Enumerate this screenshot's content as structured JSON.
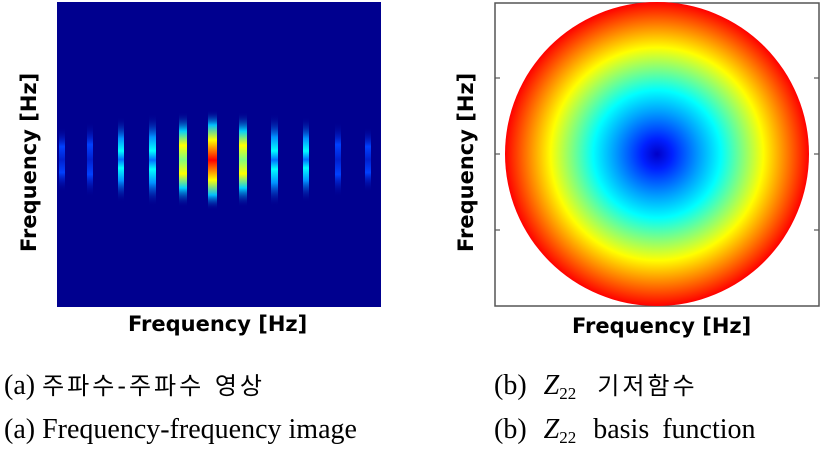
{
  "panel_a": {
    "ylabel": "Frequency [Hz]",
    "xlabel": "Frequency [Hz]",
    "caption_prefix": "(a)",
    "caption_korean": "주파수-주파수 영상",
    "caption_english": "Frequency-frequency image"
  },
  "panel_b": {
    "ylabel": "Frequency [Hz]",
    "xlabel": "Frequency [Hz]",
    "caption_prefix": "(b)",
    "symbol": "Z",
    "subscript": "22",
    "caption_korean": "기저함수",
    "caption_english": "basis function"
  },
  "colors": {
    "jet_background": "#00008f",
    "frame": "#555555"
  }
}
